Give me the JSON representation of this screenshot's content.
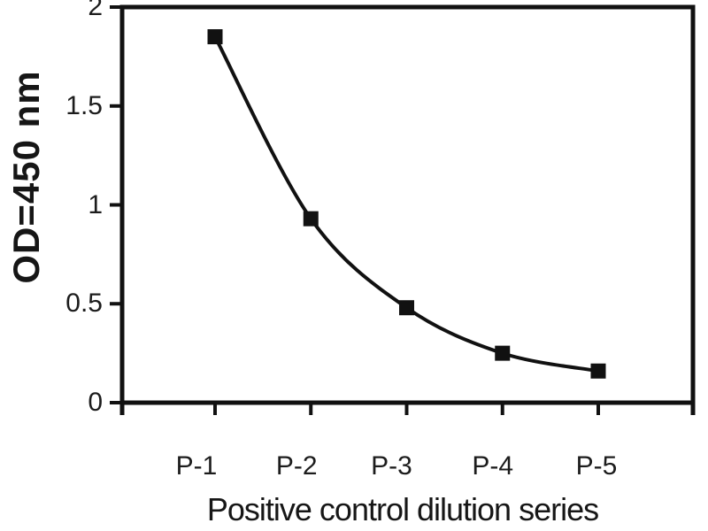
{
  "chart_data": {
    "type": "line",
    "categories": [
      "P-1",
      "P-2",
      "P-3",
      "P-4",
      "P-5"
    ],
    "values": [
      1.85,
      0.93,
      0.48,
      0.25,
      0.16
    ],
    "xlabel": "Positive control dilution series",
    "ylabel": "OD=450 nm",
    "ylim": [
      0,
      2
    ],
    "yticks": [
      0,
      0.5,
      1,
      1.5,
      2
    ],
    "ytick_labels": [
      "0",
      "0.5",
      "1",
      "1.5",
      "2"
    ],
    "grid": false,
    "legend": "none",
    "line": {
      "color": "#111111",
      "smooth": true,
      "width": 4
    },
    "marker": {
      "shape": "square",
      "color": "#111111",
      "size": 17
    },
    "axis_color": "#111111",
    "background": "#ffffff"
  }
}
